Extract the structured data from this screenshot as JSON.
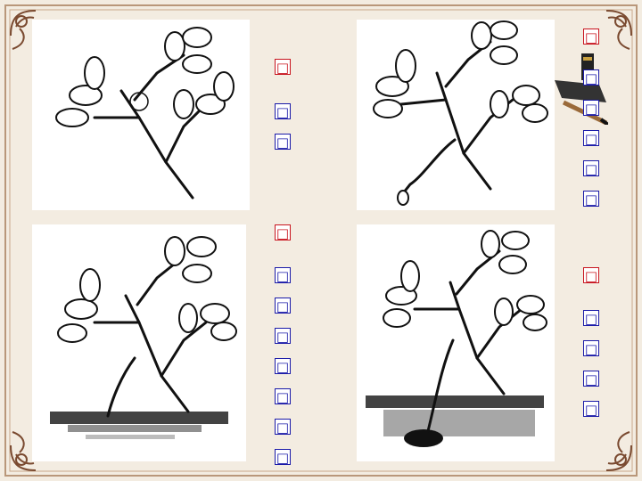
{
  "captions": {
    "col1_a": {
      "head": "□",
      "body": [
        "□",
        "□"
      ]
    },
    "col1_b": {
      "head": "□",
      "body": [
        "□",
        "□",
        "□",
        "□",
        "□",
        "□",
        "□"
      ]
    },
    "col2_a": {
      "head": "□",
      "body": [
        "□",
        "□",
        "□",
        "□",
        "□"
      ]
    },
    "col2_b": {
      "head": "□",
      "body": [
        "□",
        "□",
        "□",
        "□"
      ]
    }
  },
  "panels": [
    {
      "id": "panel-1",
      "label": "plant-branch-cut"
    },
    {
      "id": "panel-2",
      "label": "plant-branch-bent-with-peg"
    },
    {
      "id": "panel-3",
      "label": "plant-branch-soil-layering"
    },
    {
      "id": "panel-4",
      "label": "plant-branch-rooted-in-soil"
    }
  ],
  "colors": {
    "frame_bg": "#f3ece1",
    "border_brown": "#8a5a3a",
    "caption_blue": "#1a1aa8",
    "caption_red": "#c8141e"
  }
}
